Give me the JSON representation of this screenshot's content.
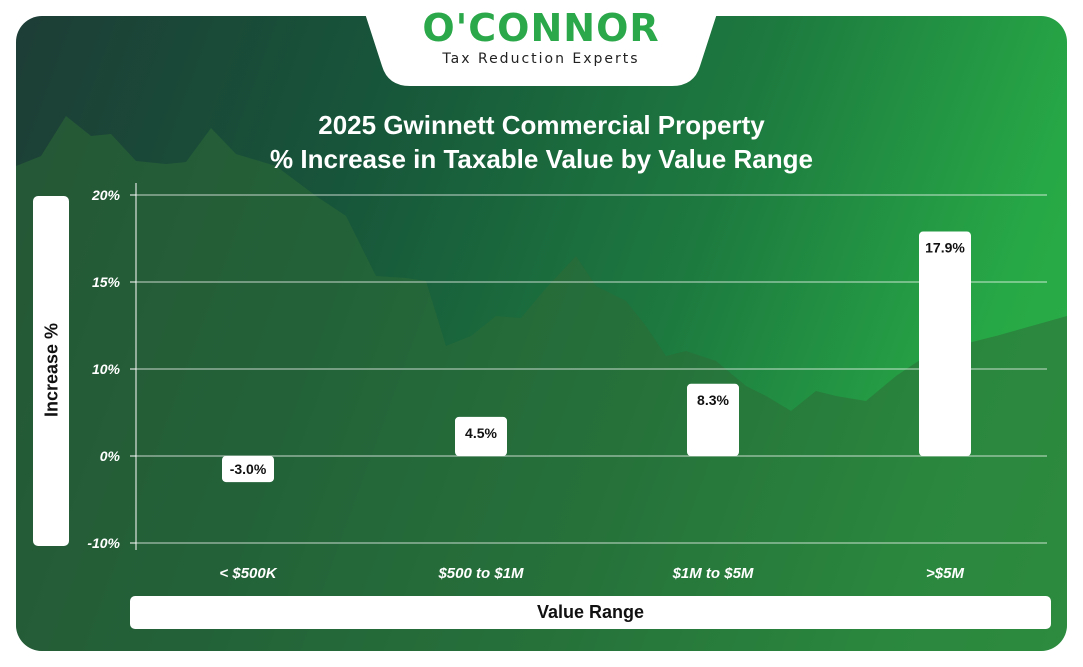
{
  "logo": {
    "name": "O'CONNOR",
    "tagline": "Tax Reduction Experts",
    "color": "#2ba84a"
  },
  "header": {
    "title_line1": "2025 Gwinnett Commercial Property",
    "title_line2": "% Increase in Taxable Value by Value Range"
  },
  "chart_data": {
    "type": "bar",
    "title": "2025 Gwinnett Commercial Property % Increase in Taxable Value by Value Range",
    "xlabel": "Value Range",
    "ylabel": "Increase %",
    "categories": [
      "< $500K",
      "$500 to $1M",
      "$1M to $5M",
      ">$5M"
    ],
    "values": [
      -3.0,
      4.5,
      8.3,
      17.9
    ],
    "value_labels": [
      "-3.0%",
      "4.5%",
      "8.3%",
      "17.9%"
    ],
    "ylim": [
      -10,
      20
    ],
    "yticks": [
      -10,
      0,
      10,
      15,
      20
    ],
    "ytick_labels": [
      "-10%",
      "0%",
      "10%",
      "15%",
      "20%"
    ],
    "grid": true,
    "bar_color": "#ffffff",
    "background_colors": [
      "#1d3d36",
      "#2bb24a"
    ]
  }
}
